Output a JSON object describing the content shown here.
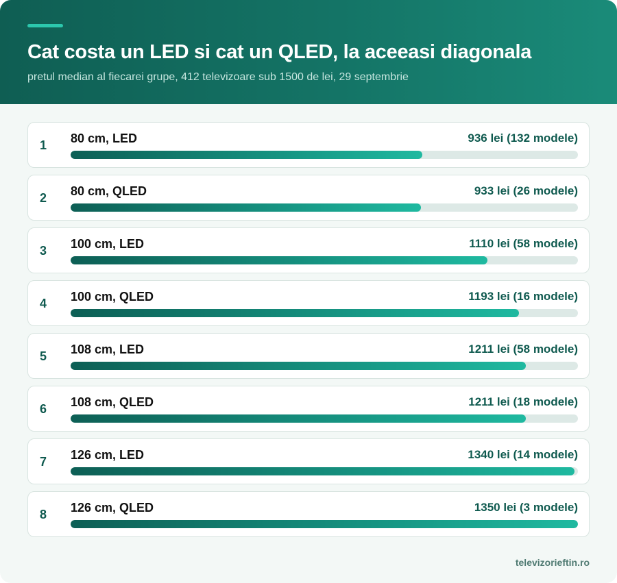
{
  "header": {
    "title": "Cat costa un LED si cat un QLED, la aceeasi diagonala",
    "subtitle": "pretul median al fiecarei grupe, 412 televizoare sub 1500 de lei, 29 septembrie"
  },
  "footer": {
    "source": "televizorieftin.ro"
  },
  "colors": {
    "header": "#147466",
    "accent": "#2cc7ad",
    "bar": "#169482",
    "track": "#dde9e6"
  },
  "rows": [
    {
      "rank": "1",
      "label": "80 cm, LED",
      "value_text": "936 lei (132 modele)"
    },
    {
      "rank": "2",
      "label": "80 cm, QLED",
      "value_text": "933 lei (26 modele)"
    },
    {
      "rank": "3",
      "label": "100 cm, LED",
      "value_text": "1110 lei (58 modele)"
    },
    {
      "rank": "4",
      "label": "100 cm, QLED",
      "value_text": "1193 lei (16 modele)"
    },
    {
      "rank": "5",
      "label": "108 cm, LED",
      "value_text": "1211 lei (58 modele)"
    },
    {
      "rank": "6",
      "label": "108 cm, QLED",
      "value_text": "1211 lei (18 modele)"
    },
    {
      "rank": "7",
      "label": "126 cm, LED",
      "value_text": "1340 lei (14 modele)"
    },
    {
      "rank": "8",
      "label": "126 cm, QLED",
      "value_text": "1350 lei (3 modele)"
    }
  ],
  "chart_data": {
    "type": "bar",
    "orientation": "horizontal",
    "title": "Cat costa un LED si cat un QLED, la aceeasi diagonala",
    "subtitle": "pretul median al fiecarei grupe, 412 televizoare sub 1500 de lei, 29 septembrie",
    "categories": [
      "80 cm, LED",
      "80 cm, QLED",
      "100 cm, LED",
      "100 cm, QLED",
      "108 cm, LED",
      "108 cm, QLED",
      "126 cm, LED",
      "126 cm, QLED"
    ],
    "values": [
      936,
      933,
      1110,
      1193,
      1211,
      1211,
      1340,
      1350
    ],
    "counts": [
      132,
      26,
      58,
      16,
      58,
      18,
      14,
      3
    ],
    "unit": "lei",
    "xlim": [
      0,
      1350
    ],
    "grid": false,
    "legend": "none"
  }
}
